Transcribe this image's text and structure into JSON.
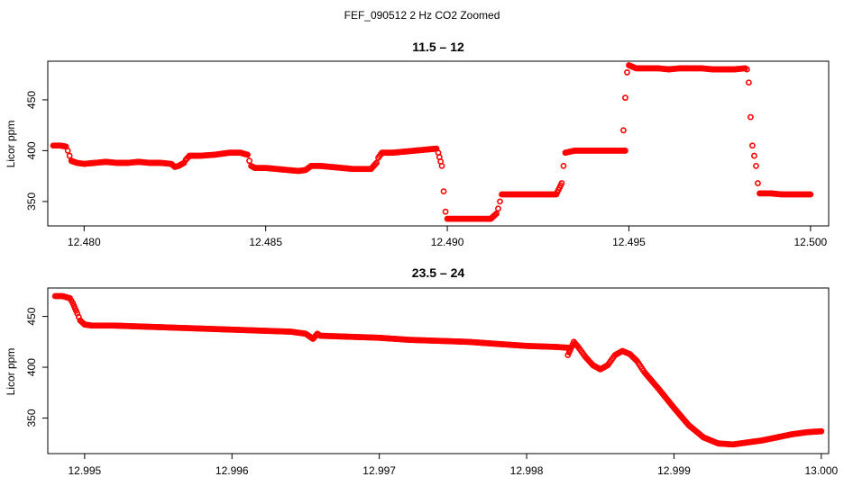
{
  "figure": {
    "suptitle": "FEF_090512  2 Hz CO2 Zoomed"
  },
  "colors": {
    "points": "#ff0000",
    "axis": "#000000"
  },
  "chart_data": [
    {
      "type": "scatter",
      "title": "11.5 – 12",
      "xlabel": "",
      "ylabel": "Licor ppm",
      "xlim": [
        12.479,
        12.5005
      ],
      "ylim": [
        326,
        488
      ],
      "xticks": [
        12.48,
        12.485,
        12.49,
        12.495,
        12.5
      ],
      "xtick_labels": [
        "12.480",
        "12.485",
        "12.490",
        "12.495",
        "12.500"
      ],
      "yticks": [
        350,
        400,
        450
      ],
      "ytick_labels": [
        "350",
        "400",
        "450"
      ],
      "marker": "open-circle",
      "grid": false,
      "series": [
        {
          "points": [
            [
              12.47915,
              405
            ],
            [
              12.47935,
              405
            ],
            [
              12.4795,
              404
            ],
            [
              12.47955,
              400
            ],
            [
              12.4796,
              395
            ],
            [
              12.47965,
              390
            ],
            [
              12.4798,
              388
            ],
            [
              12.48,
              387
            ],
            [
              12.4803,
              388
            ],
            [
              12.4806,
              389
            ],
            [
              12.4809,
              388
            ],
            [
              12.4812,
              388
            ],
            [
              12.4815,
              389
            ],
            [
              12.4818,
              388
            ],
            [
              12.4821,
              388
            ],
            [
              12.4824,
              387
            ],
            [
              12.4825,
              384
            ],
            [
              12.4826,
              385
            ],
            [
              12.48275,
              388
            ],
            [
              12.4828,
              391
            ],
            [
              12.4829,
              395
            ],
            [
              12.4832,
              395
            ],
            [
              12.4836,
              396
            ],
            [
              12.484,
              398
            ],
            [
              12.4843,
              398
            ],
            [
              12.4845,
              396
            ],
            [
              12.48455,
              390
            ],
            [
              12.4846,
              385
            ],
            [
              12.4847,
              383
            ],
            [
              12.485,
              383
            ],
            [
              12.4853,
              382
            ],
            [
              12.4856,
              381
            ],
            [
              12.4859,
              380
            ],
            [
              12.4861,
              381
            ],
            [
              12.48625,
              385
            ],
            [
              12.4865,
              385
            ],
            [
              12.4868,
              384
            ],
            [
              12.4871,
              383
            ],
            [
              12.4874,
              382
            ],
            [
              12.4877,
              382
            ],
            [
              12.4879,
              382
            ],
            [
              12.48805,
              388
            ],
            [
              12.4881,
              393
            ],
            [
              12.4882,
              398
            ],
            [
              12.4885,
              398
            ],
            [
              12.4888,
              399
            ],
            [
              12.4891,
              400
            ],
            [
              12.4894,
              401
            ],
            [
              12.4897,
              402
            ],
            [
              12.48975,
              398
            ],
            [
              12.48985,
              385
            ],
            [
              12.4899,
              360
            ],
            [
              12.48995,
              340
            ],
            [
              12.49,
              333
            ],
            [
              12.4903,
              333
            ],
            [
              12.4906,
              333
            ],
            [
              12.4909,
              333
            ],
            [
              12.4912,
              333
            ],
            [
              12.49135,
              338
            ],
            [
              12.4914,
              343
            ],
            [
              12.49145,
              350
            ],
            [
              12.4915,
              357
            ],
            [
              12.4918,
              357
            ],
            [
              12.4921,
              357
            ],
            [
              12.4924,
              357
            ],
            [
              12.4927,
              357
            ],
            [
              12.493,
              357
            ],
            [
              12.49315,
              368
            ],
            [
              12.4932,
              385
            ],
            [
              12.49325,
              398
            ],
            [
              12.4935,
              400
            ],
            [
              12.4938,
              400
            ],
            [
              12.4941,
              400
            ],
            [
              12.4944,
              400
            ],
            [
              12.4947,
              400
            ],
            [
              12.4949,
              400
            ],
            [
              12.49485,
              420
            ],
            [
              12.4949,
              452
            ],
            [
              12.49495,
              477
            ],
            [
              12.495,
              484
            ],
            [
              12.4952,
              481
            ],
            [
              12.4955,
              481
            ],
            [
              12.4958,
              481
            ],
            [
              12.4961,
              480
            ],
            [
              12.4964,
              481
            ],
            [
              12.4967,
              481
            ],
            [
              12.497,
              481
            ],
            [
              12.4973,
              480
            ],
            [
              12.4976,
              480
            ],
            [
              12.4979,
              480
            ],
            [
              12.4982,
              481
            ],
            [
              12.49825,
              480
            ],
            [
              12.4983,
              467
            ],
            [
              12.49835,
              433
            ],
            [
              12.4984,
              405
            ],
            [
              12.49845,
              395
            ],
            [
              12.4985,
              385
            ],
            [
              12.49855,
              368
            ],
            [
              12.4986,
              358
            ],
            [
              12.4989,
              358
            ],
            [
              12.4992,
              357
            ],
            [
              12.4995,
              357
            ],
            [
              12.4998,
              357
            ],
            [
              12.5,
              357
            ]
          ]
        }
      ]
    },
    {
      "type": "scatter",
      "title": "23.5 – 24",
      "xlabel": "",
      "ylabel": "Licor ppm",
      "xlim": [
        12.99475,
        13.00005
      ],
      "ylim": [
        315,
        478
      ],
      "xticks": [
        12.995,
        12.996,
        12.997,
        12.998,
        12.999,
        13.0
      ],
      "xtick_labels": [
        "12.995",
        "12.996",
        "12.997",
        "12.998",
        "12.999",
        "13.000"
      ],
      "yticks": [
        350,
        400,
        450
      ],
      "ytick_labels": [
        "350",
        "400",
        "450"
      ],
      "marker": "open-circle",
      "grid": false,
      "series": [
        {
          "points": [
            [
              12.9948,
              470
            ],
            [
              12.99485,
              470
            ],
            [
              12.9949,
              468
            ],
            [
              12.99492,
              463
            ],
            [
              12.99495,
              453
            ],
            [
              12.99497,
              446
            ],
            [
              12.995,
              442
            ],
            [
              12.99505,
              441
            ],
            [
              12.9952,
              441
            ],
            [
              12.9954,
              440
            ],
            [
              12.9956,
              439
            ],
            [
              12.9958,
              438
            ],
            [
              12.996,
              437
            ],
            [
              12.9962,
              436
            ],
            [
              12.9964,
              435
            ],
            [
              12.9965,
              433
            ],
            [
              12.99655,
              428
            ],
            [
              12.99658,
              433
            ],
            [
              12.9966,
              431
            ],
            [
              12.9968,
              430
            ],
            [
              12.997,
              429
            ],
            [
              12.9972,
              427
            ],
            [
              12.9974,
              426
            ],
            [
              12.9976,
              425
            ],
            [
              12.9978,
              423
            ],
            [
              12.998,
              421
            ],
            [
              12.9982,
              420
            ],
            [
              12.9983,
              419
            ],
            [
              12.99828,
              412
            ],
            [
              12.99832,
              425
            ],
            [
              12.99835,
              420
            ],
            [
              12.9984,
              410
            ],
            [
              12.99845,
              402
            ],
            [
              12.9985,
              398
            ],
            [
              12.99855,
              402
            ],
            [
              12.9986,
              412
            ],
            [
              12.99865,
              416
            ],
            [
              12.9987,
              413
            ],
            [
              12.99875,
              406
            ],
            [
              12.9988,
              395
            ],
            [
              12.9989,
              378
            ],
            [
              12.999,
              360
            ],
            [
              12.9991,
              343
            ],
            [
              12.9992,
              331
            ],
            [
              12.9993,
              325
            ],
            [
              12.9994,
              324
            ],
            [
              12.9995,
              326
            ],
            [
              12.9996,
              328
            ],
            [
              12.9997,
              331
            ],
            [
              12.9998,
              334
            ],
            [
              12.9999,
              336
            ],
            [
              13.0,
              337
            ]
          ]
        }
      ]
    }
  ]
}
